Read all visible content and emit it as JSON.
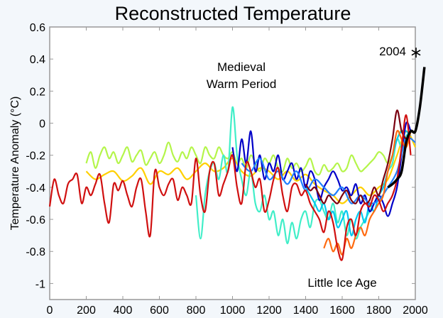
{
  "chart_data": {
    "type": "line",
    "title": "Reconstructed Temperature",
    "xlabel": "",
    "ylabel": "Temperature Anomaly (°C)",
    "xlim": [
      0,
      2000
    ],
    "ylim": [
      -1.1,
      0.6
    ],
    "xticks": [
      0,
      200,
      400,
      600,
      800,
      1000,
      1200,
      1400,
      1600,
      1800,
      2000
    ],
    "yticks": [
      0.6,
      0.4,
      0.2,
      0,
      -0.2,
      -0.4,
      -0.6,
      -0.8,
      -1
    ],
    "ytick_labels": [
      "0.6",
      "0.4",
      "0.2",
      "0",
      "-0.2",
      "-0.4",
      "-0.6",
      "-0.8",
      "-1"
    ],
    "grid": false,
    "annotations": {
      "medieval_line1": "Medieval",
      "medieval_line2": "Warm Period",
      "little_ice_age": "Little Ice Age",
      "marker_label": "2004",
      "marker_value": [
        2004,
        0.44
      ]
    },
    "series": [
      {
        "name": "yellow-green",
        "color": "#b4f54a",
        "start": 200,
        "step": 25,
        "values": [
          -0.25,
          -0.18,
          -0.28,
          -0.2,
          -0.15,
          -0.22,
          -0.18,
          -0.25,
          -0.2,
          -0.15,
          -0.24,
          -0.2,
          -0.17,
          -0.26,
          -0.22,
          -0.18,
          -0.25,
          -0.2,
          -0.12,
          -0.2,
          -0.24,
          -0.18,
          -0.22,
          -0.15,
          -0.2,
          -0.25,
          -0.15,
          -0.2,
          -0.22,
          -0.15,
          -0.2,
          -0.22,
          -0.18,
          -0.25,
          -0.22,
          -0.28,
          -0.2,
          -0.25,
          -0.3,
          -0.22,
          -0.25,
          -0.2,
          -0.28,
          -0.3,
          -0.22,
          -0.28,
          -0.25,
          -0.3,
          -0.27,
          -0.22,
          -0.3,
          -0.32,
          -0.26,
          -0.3,
          -0.28,
          -0.25,
          -0.3,
          -0.28,
          -0.2,
          -0.25,
          -0.3,
          -0.28,
          -0.25,
          -0.22,
          -0.18,
          -0.2,
          -0.25,
          -0.2,
          -0.1,
          -0.05,
          -0.15,
          -0.05
        ]
      },
      {
        "name": "yellow",
        "color": "#ffd000",
        "start": 200,
        "step": 50,
        "values": [
          -0.3,
          -0.35,
          -0.32,
          -0.3,
          -0.36,
          -0.33,
          -0.28,
          -0.38,
          -0.3,
          -0.32,
          -0.28,
          -0.35,
          -0.3,
          -0.25,
          -0.3,
          -0.28,
          -0.22,
          -0.3,
          -0.33,
          -0.28,
          -0.3,
          -0.35,
          -0.3,
          -0.36,
          -0.32,
          -0.38,
          -0.42,
          -0.45,
          -0.5,
          -0.45,
          -0.4,
          -0.45,
          -0.4,
          -0.35,
          -0.2,
          -0.05,
          -0.15
        ]
      },
      {
        "name": "aquamarine",
        "color": "#40eec8",
        "start": 800,
        "step": 25,
        "values": [
          -0.45,
          -0.72,
          -0.45,
          -0.3,
          -0.25,
          -0.35,
          -0.2,
          -0.3,
          0.1,
          -0.2,
          -0.35,
          -0.45,
          -0.3,
          -0.5,
          -0.55,
          -0.45,
          -0.6,
          -0.55,
          -0.7,
          -0.6,
          -0.75,
          -0.62,
          -0.72,
          -0.6,
          -0.55,
          -0.65,
          -0.5,
          -0.48,
          -0.55,
          -0.6,
          -0.5,
          -0.62,
          -0.55,
          -0.7,
          -0.6,
          -0.72,
          -0.65,
          -0.6,
          -0.55,
          -0.5,
          -0.45,
          -0.4,
          -0.3,
          -0.25,
          -0.1,
          -0.15,
          -0.08,
          -0.05
        ]
      },
      {
        "name": "cyan",
        "color": "#00c8f0",
        "start": 1400,
        "step": 25,
        "values": [
          -0.4,
          -0.45,
          -0.5,
          -0.55,
          -0.5,
          -0.6,
          -0.55,
          -0.65,
          -0.6,
          -0.55,
          -0.7,
          -0.6,
          -0.55,
          -0.62,
          -0.5,
          -0.55,
          -0.45,
          -0.4,
          -0.3,
          -0.2,
          -0.1,
          -0.05,
          -0.05,
          -0.08
        ]
      },
      {
        "name": "blue",
        "color": "#0000c8",
        "start": 1000,
        "step": 25,
        "values": [
          -0.15,
          -0.3,
          -0.1,
          -0.25,
          -0.05,
          -0.3,
          -0.2,
          -0.35,
          -0.25,
          -0.3,
          -0.2,
          -0.35,
          -0.3,
          -0.25,
          -0.35,
          -0.28,
          -0.4,
          -0.3,
          -0.35,
          -0.48,
          -0.4,
          -0.35,
          -0.3,
          -0.35,
          -0.42,
          -0.4,
          -0.45,
          -0.38,
          -0.5,
          -0.45,
          -0.55,
          -0.5,
          -0.45,
          -0.5,
          -0.58,
          -0.5,
          -0.4,
          -0.2,
          0.0,
          -0.05
        ]
      },
      {
        "name": "light-blue",
        "color": "#2080ff",
        "start": 1050,
        "step": 50,
        "values": [
          -0.25,
          -0.3,
          -0.22,
          -0.35,
          -0.3,
          -0.38,
          -0.3,
          -0.42,
          -0.35,
          -0.4,
          -0.45,
          -0.4,
          -0.5,
          -0.45,
          -0.5,
          -0.48,
          -0.4,
          -0.3,
          -0.1,
          -0.12
        ]
      },
      {
        "name": "orange",
        "color": "#ff6a10",
        "start": 1500,
        "step": 25,
        "values": [
          -0.78,
          -0.72,
          -0.8,
          -0.75,
          -0.82,
          -0.72,
          -0.78,
          -0.7,
          -0.65,
          -0.7,
          -0.6,
          -0.55,
          -0.5,
          -0.45,
          -0.3,
          -0.2,
          -0.05,
          -0.1,
          -0.15,
          -0.05
        ]
      },
      {
        "name": "dark-red",
        "color": "#7a0010",
        "start": 1400,
        "step": 25,
        "values": [
          -0.38,
          -0.42,
          -0.4,
          -0.45,
          -0.5,
          -0.45,
          -0.48,
          -0.5,
          -0.45,
          -0.42,
          -0.48,
          -0.5,
          -0.45,
          -0.5,
          -0.48,
          -0.4,
          -0.45,
          -0.35,
          -0.25,
          -0.1,
          0.08,
          -0.05,
          -0.1
        ]
      },
      {
        "name": "red",
        "color": "#d01010",
        "start": 0,
        "step": 25,
        "values": [
          -0.52,
          -0.35,
          -0.45,
          -0.5,
          -0.38,
          -0.35,
          -0.32,
          -0.5,
          -0.4,
          -0.45,
          -0.38,
          -0.32,
          -0.5,
          -0.62,
          -0.38,
          -0.42,
          -0.36,
          -0.45,
          -0.52,
          -0.4,
          -0.35,
          -0.55,
          -0.7,
          -0.3,
          -0.4,
          -0.45,
          -0.38,
          -0.35,
          -0.48,
          -0.4,
          -0.45,
          -0.5,
          -0.22,
          -0.45,
          -0.55,
          -0.3,
          -0.25,
          -0.45,
          -0.38,
          -0.3,
          -0.2,
          -0.4,
          -0.5,
          -0.25,
          -0.3,
          -0.4,
          -0.35,
          -0.55,
          -0.48,
          -0.35,
          -0.28,
          -0.45,
          -0.55,
          -0.4,
          -0.38,
          -0.45,
          -0.42,
          -0.5,
          -0.55,
          -0.6,
          -0.68,
          -0.55,
          -0.62,
          -0.78,
          -0.85,
          -0.65,
          -0.6,
          -0.7,
          -0.55,
          -0.5,
          -0.52,
          -0.45,
          -0.48,
          -0.55,
          -0.5,
          -0.45,
          -0.35,
          -0.15,
          0.05,
          -0.2
        ]
      },
      {
        "name": "instrumental",
        "color": "#000000",
        "start": 1850,
        "step": 25,
        "values": [
          -0.4,
          -0.38,
          -0.35,
          -0.3,
          -0.12,
          -0.05,
          -0.05,
          0.1,
          0.35
        ]
      }
    ]
  }
}
